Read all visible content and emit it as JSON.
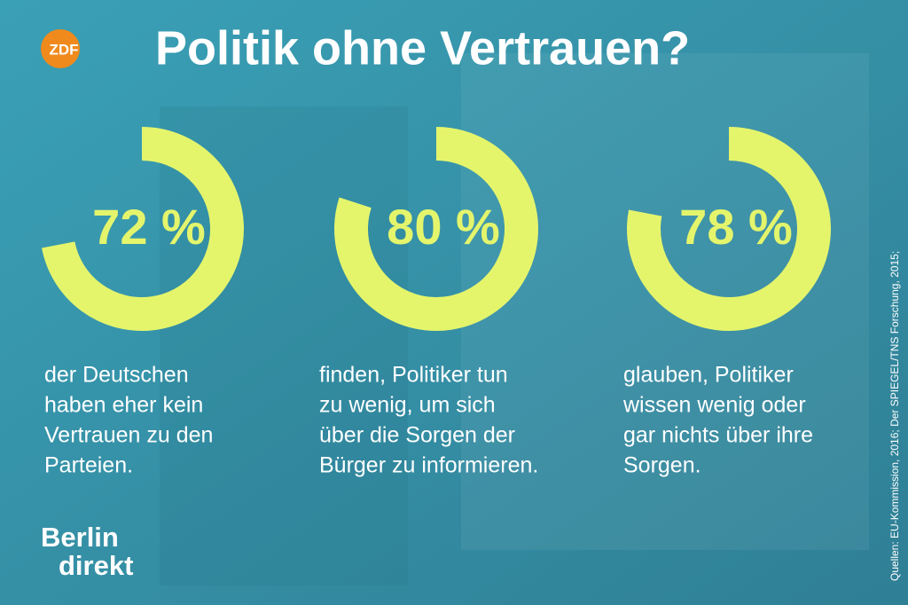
{
  "chart_data": {
    "type": "gauge",
    "title": "Politik ohne Vertrauen?",
    "logo": "ZDF",
    "brand": [
      "Berlin",
      "direkt"
    ],
    "source": "Quellen: EU-Kommission, 2016; Der SPIEGEL/TNS Forschung, 2015;",
    "values": [
      72,
      80,
      78
    ],
    "value_labels": [
      "72 %",
      "80 %",
      "78 %"
    ],
    "color": "#e4f56c",
    "descriptions": [
      [
        "der Deutschen",
        "haben eher kein",
        "Vertrauen zu den",
        "Parteien."
      ],
      [
        "finden, Politiker tun",
        "zu wenig, um sich",
        "über die Sorgen der",
        "Bürger zu informieren."
      ],
      [
        "glauben, Politiker",
        "wissen wenig oder",
        "gar nichts über ihre",
        "Sorgen."
      ]
    ]
  }
}
